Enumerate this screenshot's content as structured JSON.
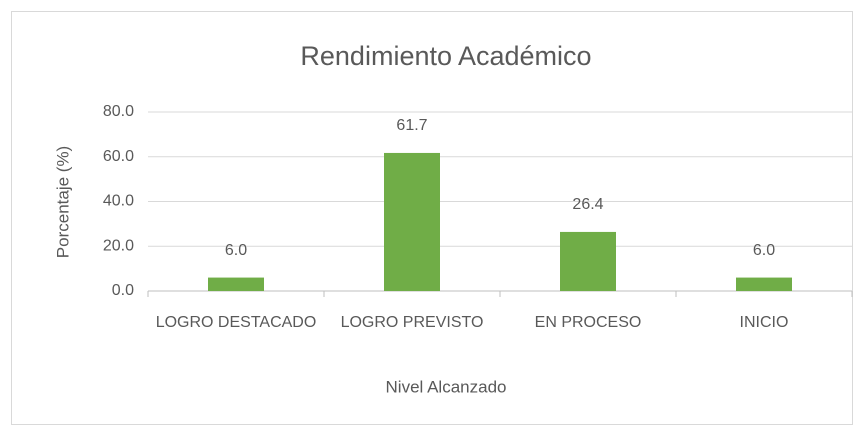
{
  "chart_data": {
    "type": "bar",
    "title": "Rendimiento Académico",
    "x_label": "Nivel Alcanzado",
    "y_label": "Porcentaje (%)",
    "categories": [
      "LOGRO DESTACADO",
      "LOGRO PREVISTO",
      "EN PROCESO",
      "INICIO"
    ],
    "values": [
      6.0,
      61.7,
      26.4,
      6.0
    ],
    "value_labels": [
      "6.0",
      "61.7",
      "26.4",
      "6.0"
    ],
    "color": "#70ad47",
    "ylim": [
      0,
      80
    ],
    "yticks": [
      {
        "value": 0,
        "label": "0.0"
      },
      {
        "value": 20,
        "label": "20.0"
      },
      {
        "value": 40,
        "label": "40.0"
      },
      {
        "value": 60,
        "label": "60.0"
      },
      {
        "value": 80,
        "label": "80.0"
      }
    ],
    "grid": true
  }
}
